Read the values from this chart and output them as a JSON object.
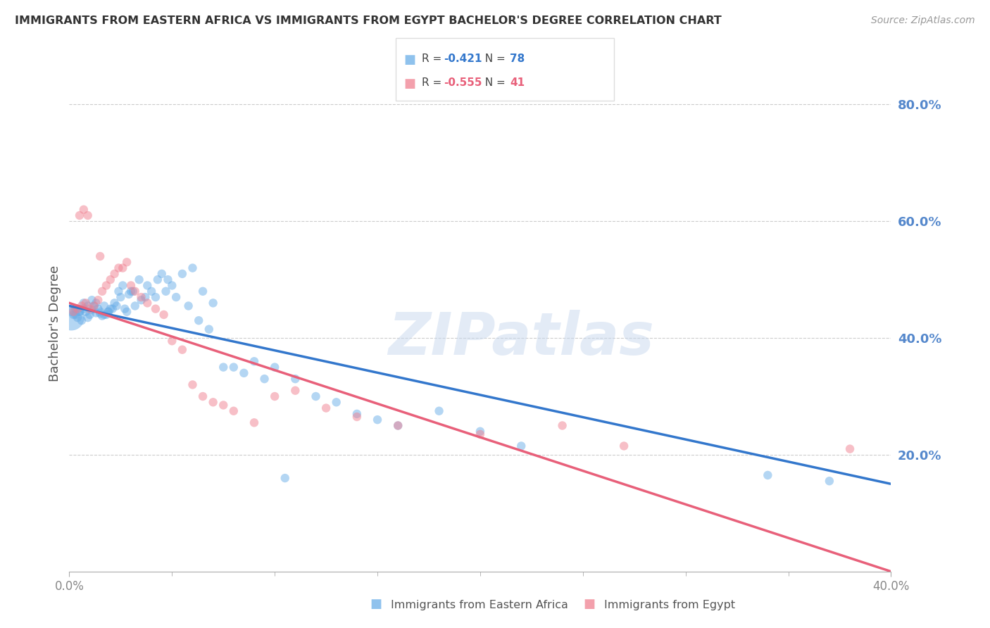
{
  "title": "IMMIGRANTS FROM EASTERN AFRICA VS IMMIGRANTS FROM EGYPT BACHELOR'S DEGREE CORRELATION CHART",
  "source": "Source: ZipAtlas.com",
  "ylabel": "Bachelor's Degree",
  "watermark": "ZIPatlas",
  "xlim": [
    0.0,
    0.4
  ],
  "ylim": [
    0.0,
    0.85
  ],
  "yticks": [
    0.2,
    0.4,
    0.6,
    0.8
  ],
  "ytick_labels": [
    "20.0%",
    "40.0%",
    "60.0%",
    "80.0%"
  ],
  "series1_label": "Immigrants from Eastern Africa",
  "series1_R": "-0.421",
  "series1_N": "78",
  "series1_color": "#6aaee8",
  "series2_label": "Immigrants from Egypt",
  "series2_R": "-0.555",
  "series2_N": "41",
  "series2_color": "#f08090",
  "series1_x": [
    0.001,
    0.002,
    0.003,
    0.004,
    0.005,
    0.006,
    0.007,
    0.008,
    0.009,
    0.01,
    0.011,
    0.012,
    0.013,
    0.014,
    0.015,
    0.016,
    0.017,
    0.018,
    0.019,
    0.02,
    0.022,
    0.023,
    0.025,
    0.027,
    0.028,
    0.03,
    0.032,
    0.035,
    0.037,
    0.04,
    0.042,
    0.045,
    0.048,
    0.05,
    0.055,
    0.06,
    0.065,
    0.07,
    0.08,
    0.09,
    0.1,
    0.11,
    0.12,
    0.13,
    0.14,
    0.15,
    0.16,
    0.18,
    0.2,
    0.22,
    0.003,
    0.005,
    0.007,
    0.009,
    0.011,
    0.013,
    0.015,
    0.017,
    0.019,
    0.021,
    0.024,
    0.026,
    0.029,
    0.031,
    0.034,
    0.038,
    0.043,
    0.047,
    0.052,
    0.058,
    0.063,
    0.068,
    0.075,
    0.085,
    0.095,
    0.105,
    0.34,
    0.37
  ],
  "series1_y": [
    0.445,
    0.44,
    0.45,
    0.435,
    0.445,
    0.43,
    0.46,
    0.445,
    0.435,
    0.44,
    0.448,
    0.455,
    0.443,
    0.45,
    0.442,
    0.438,
    0.455,
    0.44,
    0.445,
    0.45,
    0.46,
    0.455,
    0.47,
    0.45,
    0.445,
    0.48,
    0.455,
    0.465,
    0.47,
    0.48,
    0.47,
    0.51,
    0.5,
    0.49,
    0.51,
    0.52,
    0.48,
    0.46,
    0.35,
    0.36,
    0.35,
    0.33,
    0.3,
    0.29,
    0.27,
    0.26,
    0.25,
    0.275,
    0.24,
    0.215,
    0.44,
    0.445,
    0.45,
    0.455,
    0.465,
    0.46,
    0.445,
    0.44,
    0.445,
    0.45,
    0.48,
    0.49,
    0.475,
    0.48,
    0.5,
    0.49,
    0.5,
    0.48,
    0.47,
    0.455,
    0.43,
    0.415,
    0.35,
    0.34,
    0.33,
    0.16,
    0.165,
    0.155
  ],
  "series1_sizes": [
    80,
    80,
    80,
    80,
    80,
    80,
    80,
    80,
    80,
    80,
    80,
    80,
    80,
    80,
    80,
    80,
    80,
    80,
    80,
    80,
    80,
    80,
    80,
    80,
    80,
    80,
    80,
    80,
    80,
    80,
    80,
    80,
    80,
    80,
    80,
    80,
    80,
    80,
    80,
    80,
    80,
    80,
    80,
    80,
    80,
    80,
    80,
    80,
    80,
    80,
    80,
    80,
    80,
    80,
    80,
    80,
    80,
    80,
    80,
    80,
    80,
    80,
    80,
    80,
    80,
    80,
    80,
    80,
    80,
    80,
    80,
    80,
    80,
    80,
    80,
    80,
    80,
    80
  ],
  "series1_large_x": [
    0.001
  ],
  "series1_large_y": [
    0.435
  ],
  "series1_large_size": [
    700
  ],
  "series2_x": [
    0.002,
    0.004,
    0.006,
    0.008,
    0.01,
    0.012,
    0.014,
    0.016,
    0.018,
    0.02,
    0.022,
    0.024,
    0.026,
    0.028,
    0.03,
    0.032,
    0.035,
    0.038,
    0.042,
    0.046,
    0.05,
    0.055,
    0.06,
    0.065,
    0.07,
    0.075,
    0.08,
    0.09,
    0.1,
    0.11,
    0.125,
    0.14,
    0.16,
    0.2,
    0.24,
    0.27,
    0.38,
    0.005,
    0.007,
    0.009,
    0.015
  ],
  "series2_y": [
    0.445,
    0.45,
    0.455,
    0.46,
    0.45,
    0.455,
    0.465,
    0.48,
    0.49,
    0.5,
    0.51,
    0.52,
    0.52,
    0.53,
    0.49,
    0.48,
    0.47,
    0.46,
    0.45,
    0.44,
    0.395,
    0.38,
    0.32,
    0.3,
    0.29,
    0.285,
    0.275,
    0.255,
    0.3,
    0.31,
    0.28,
    0.265,
    0.25,
    0.235,
    0.25,
    0.215,
    0.21,
    0.61,
    0.62,
    0.61,
    0.54
  ],
  "series2_sizes": [
    80,
    80,
    80,
    80,
    80,
    80,
    80,
    80,
    80,
    80,
    80,
    80,
    80,
    80,
    80,
    80,
    80,
    80,
    80,
    80,
    80,
    80,
    80,
    80,
    80,
    80,
    80,
    80,
    80,
    80,
    80,
    80,
    80,
    80,
    80,
    80,
    80,
    80,
    80,
    80,
    80
  ],
  "line1_x": [
    0.0,
    0.4
  ],
  "line1_y": [
    0.455,
    0.15
  ],
  "line2_x": [
    0.0,
    0.4
  ],
  "line2_y": [
    0.46,
    0.0
  ],
  "background_color": "#ffffff",
  "grid_color": "#cccccc",
  "title_color": "#333333",
  "tick_color": "#5588cc"
}
